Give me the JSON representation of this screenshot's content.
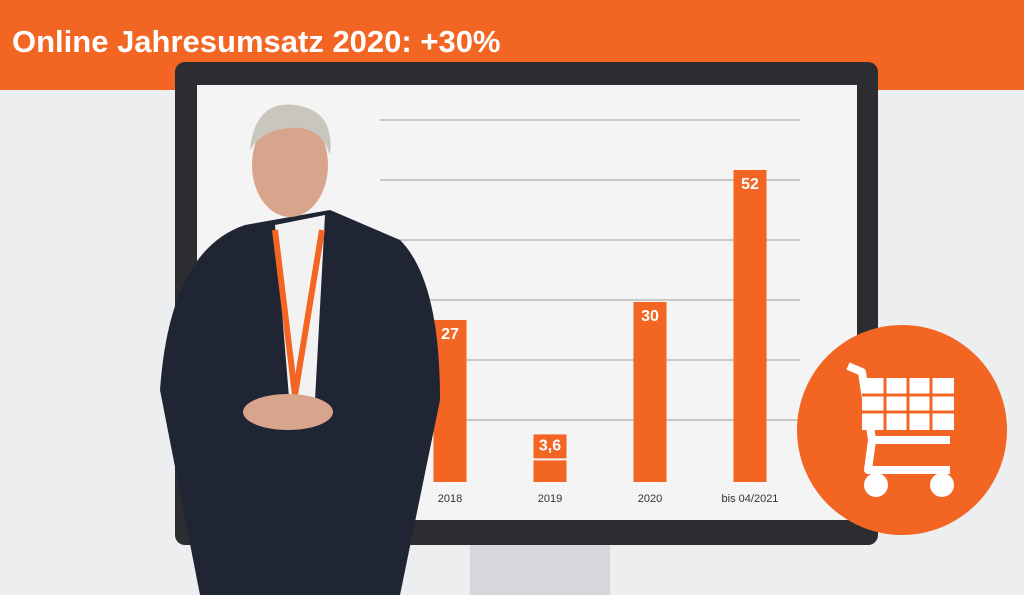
{
  "chart_data": {
    "type": "bar",
    "title": "Online Jahresumsatz 2020: +30%",
    "categories": [
      "2018",
      "2019",
      "2020",
      "bis 04/2021"
    ],
    "values": [
      27,
      3.6,
      30,
      52
    ],
    "value_labels": [
      "27",
      "3,6",
      "30",
      "52"
    ],
    "color": "#f26522"
  }
}
